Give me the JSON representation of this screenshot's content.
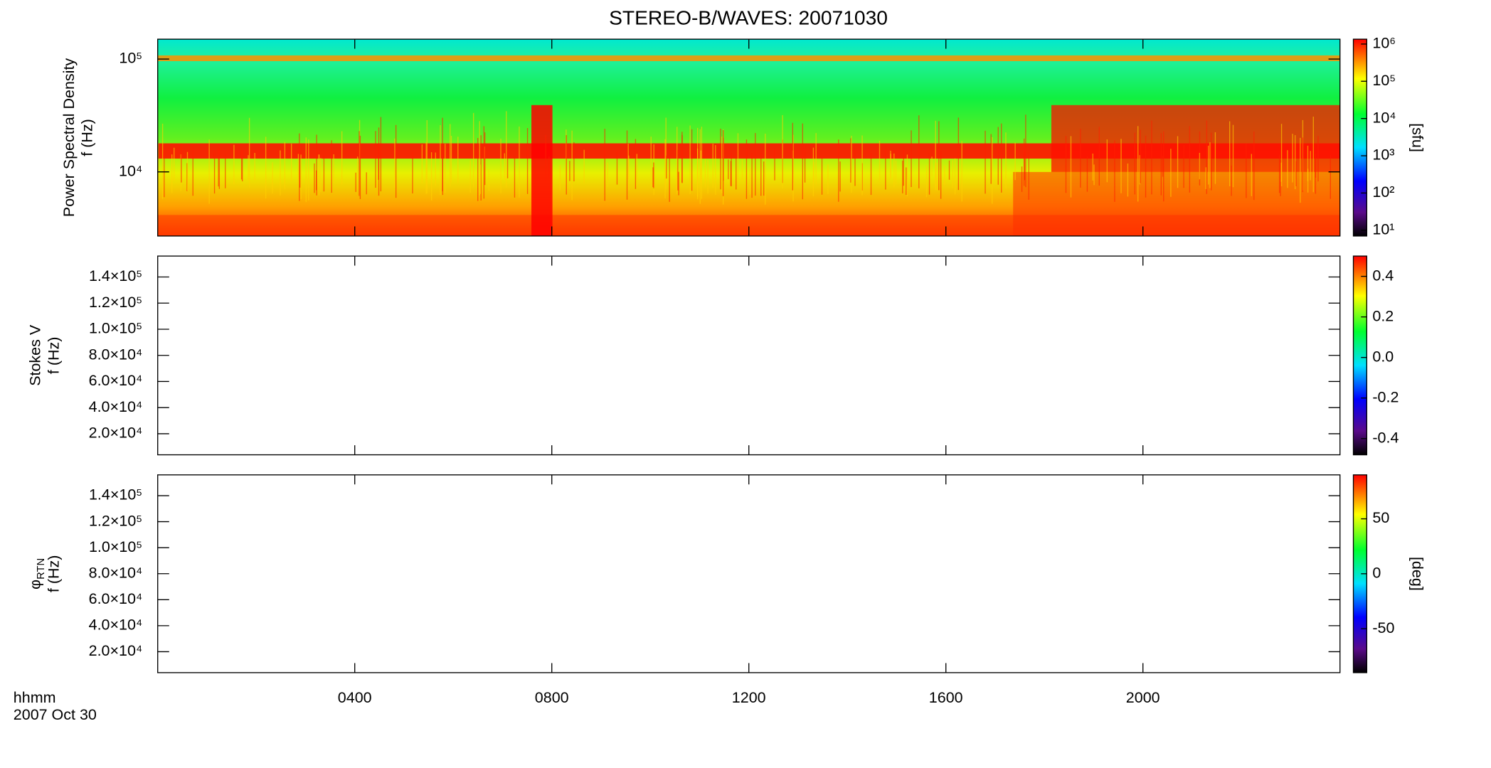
{
  "chart_data": {
    "type": "spectrogram",
    "title": "STEREO-B/WAVES: 20071030",
    "x_label": [
      "hhmm",
      "2007 Oct 30"
    ],
    "xlim": [
      0,
      24
    ],
    "xticks": [
      {
        "value": 4,
        "label": "0400"
      },
      {
        "value": 8,
        "label": "0800"
      },
      {
        "value": 12,
        "label": "1200"
      },
      {
        "value": 16,
        "label": "1600"
      },
      {
        "value": 20,
        "label": "2000"
      }
    ],
    "panels": [
      {
        "ylabel": [
          "Power Spectral Density",
          "f (Hz)"
        ],
        "yscale": "log",
        "ylim": [
          2700,
          150000
        ],
        "yticks": [
          {
            "value": 10000,
            "label": "10⁴"
          },
          {
            "value": 100000,
            "label": "10⁵"
          }
        ],
        "colorbar": {
          "scale": "log",
          "clim": [
            7,
            1350000
          ],
          "label": "[sfu]",
          "ticks": [
            {
              "value": 10,
              "label": "10¹"
            },
            {
              "value": 100,
              "label": "10²"
            },
            {
              "value": 1000,
              "label": "10³"
            },
            {
              "value": 10000,
              "label": "10⁴"
            },
            {
              "value": 100000,
              "label": "10⁵"
            },
            {
              "value": 1000000,
              "label": "10⁶"
            }
          ]
        }
      },
      {
        "ylabel": [
          "Stokes V",
          "f (Hz)"
        ],
        "yscale": "linear",
        "ylim": [
          3900,
          156000
        ],
        "yticks": [
          {
            "value": 20000,
            "label": "2.0×10⁴"
          },
          {
            "value": 40000,
            "label": "4.0×10⁴"
          },
          {
            "value": 60000,
            "label": "6.0×10⁴"
          },
          {
            "value": 80000,
            "label": "8.0×10⁴"
          },
          {
            "value": 100000,
            "label": "1.0×10⁵"
          },
          {
            "value": 120000,
            "label": "1.2×10⁵"
          },
          {
            "value": 140000,
            "label": "1.4×10⁵"
          }
        ],
        "colorbar": {
          "scale": "linear",
          "clim": [
            -0.48,
            0.5
          ],
          "ticks": [
            -0.4,
            -0.2,
            {
              "value": 0,
              "label": "0.0"
            },
            0.2,
            0.4
          ]
        }
      },
      {
        "ylabel": [
          "φ",
          "f (Hz)"
        ],
        "ylabel_sub": "RTN",
        "yscale": "linear",
        "ylim": [
          3900,
          156000
        ],
        "yticks": [
          {
            "value": 20000,
            "label": "2.0×10⁴"
          },
          {
            "value": 40000,
            "label": "4.0×10⁴"
          },
          {
            "value": 60000,
            "label": "6.0×10⁴"
          },
          {
            "value": 80000,
            "label": "8.0×10⁴"
          },
          {
            "value": 100000,
            "label": "1.0×10⁵"
          },
          {
            "value": 120000,
            "label": "1.2×10⁵"
          },
          {
            "value": 140000,
            "label": "1.4×10⁵"
          }
        ],
        "colorbar": {
          "scale": "linear",
          "clim": [
            -90,
            90
          ],
          "label": "[deg]",
          "ticks": [
            -50,
            0,
            50
          ]
        }
      }
    ]
  }
}
